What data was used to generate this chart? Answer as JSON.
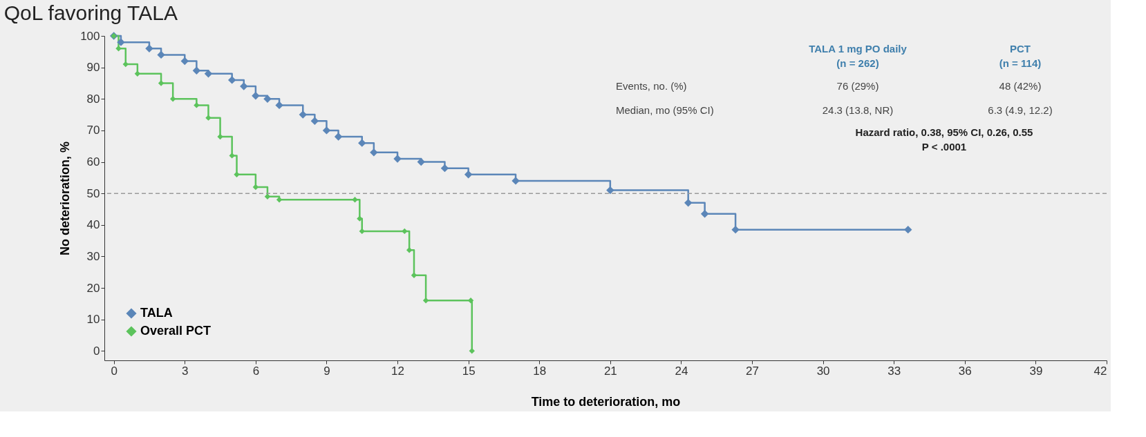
{
  "chart_data": {
    "type": "step",
    "title": "QoL favoring TALA",
    "xlabel": "Time to deterioration, mo",
    "ylabel": "No deterioration, %",
    "xlim": [
      -0.4,
      42
    ],
    "xticks": [
      0,
      3,
      6,
      9,
      12,
      15,
      18,
      21,
      24,
      27,
      30,
      33,
      36,
      39,
      42
    ],
    "ylim": [
      -3,
      100
    ],
    "yticks": [
      0,
      10,
      20,
      30,
      40,
      50,
      60,
      70,
      80,
      90,
      100
    ],
    "grid": false,
    "legend": "bottom left",
    "marker": "diamond",
    "line_style": "solid",
    "series": [
      {
        "name": "TALA",
        "color": "#5b86b8",
        "x": [
          0,
          0.3,
          1.5,
          2,
          3,
          3.5,
          4,
          5,
          5.5,
          6,
          6.5,
          7,
          8,
          8.5,
          9,
          9.5,
          10.5,
          11,
          12,
          13,
          14,
          15,
          17,
          21,
          24.3,
          25,
          26.3,
          33.6
        ],
        "values": [
          100,
          98,
          96,
          94,
          92,
          89,
          88,
          86,
          84,
          81,
          80,
          78,
          75,
          73,
          70,
          68,
          66,
          63,
          61,
          60,
          58,
          56,
          54,
          51,
          47,
          43.5,
          38.5,
          38.5
        ]
      },
      {
        "name": "Overall PCT",
        "color": "#5cc35c",
        "x": [
          0,
          0.2,
          0.5,
          1,
          2,
          2.5,
          3.5,
          4,
          4.5,
          5,
          5.2,
          6,
          6.5,
          7,
          10.2,
          10.4,
          10.5,
          12.3,
          12.5,
          12.7,
          13.2,
          15.1,
          15.15
        ],
        "values": [
          100,
          96,
          91,
          88,
          85,
          80,
          78,
          74,
          68,
          62,
          56,
          52,
          49,
          48,
          48,
          42,
          38,
          38,
          32,
          24,
          16,
          16,
          0
        ]
      }
    ],
    "ref_lines": [
      {
        "axis": "y",
        "value": 50,
        "color": "#9a9a9a",
        "line_style": "dashed"
      }
    ],
    "annotations": [
      "TALA 1 mg PO daily",
      "(n = 262)",
      "PCT",
      "(n = 114)",
      "Events, no. (%)",
      "76 (29%)",
      "48 (42%)",
      "Median, mo (95% CI)",
      "24.3 (13.8, NR)",
      "6.3 (4.9, 12.2)",
      "Hazard ratio, 0.38, 95% CI, 0.26, 0.55",
      "P < .0001"
    ]
  }
}
